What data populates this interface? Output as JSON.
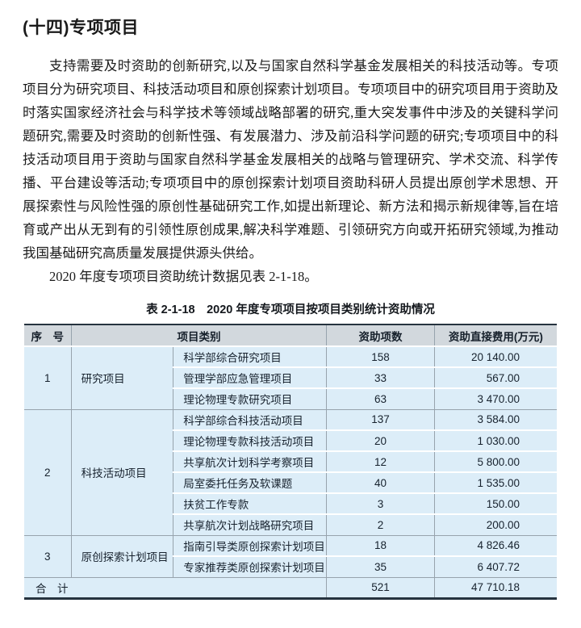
{
  "page": {
    "heading": "(十四)专项项目",
    "paragraph1": "支持需要及时资助的创新研究,以及与国家自然科学基金发展相关的科技活动等。专项项目分为研究项目、科技活动项目和原创探索计划项目。专项项目中的研究项目用于资助及时落实国家经济社会与科学技术等领域战略部署的研究,重大突发事件中涉及的关键科学问题研究,需要及时资助的创新性强、有发展潜力、涉及前沿科学问题的研究;专项项目中的科技活动项目用于资助与国家自然科学基金发展相关的战略与管理研究、学术交流、科学传播、平台建设等活动;专项项目中的原创探索计划项目资助科研人员提出原创学术思想、开展探索性与风险性强的原创性基础研究工作,如提出新理论、新方法和揭示新规律等,旨在培育或产出从无到有的引领性原创成果,解决科学难题、引领研究方向或开拓研究领域,为推动我国基础研究高质量发展提供源头供给。",
    "paragraph2": "2020 年度专项项目资助统计数据见表 2-1-18。",
    "table_caption": "表 2-1-18　2020 年度专项项目按项目类别统计资助情况"
  },
  "table": {
    "headers": {
      "no": "序　号",
      "category": "项目类别",
      "count": "资助项数",
      "amount": "资助直接费用(万元)"
    },
    "groups": [
      {
        "no": "1",
        "category": "研究项目",
        "rows": [
          {
            "name": "科学部综合研究项目",
            "count": "158",
            "amount": "20 140.00"
          },
          {
            "name": "管理学部应急管理项目",
            "count": "33",
            "amount": "567.00"
          },
          {
            "name": "理论物理专款研究项目",
            "count": "63",
            "amount": "3 470.00"
          }
        ]
      },
      {
        "no": "2",
        "category": "科技活动项目",
        "rows": [
          {
            "name": "科学部综合科技活动项目",
            "count": "137",
            "amount": "3 584.00"
          },
          {
            "name": "理论物理专款科技活动项目",
            "count": "20",
            "amount": "1 030.00"
          },
          {
            "name": "共享航次计划科学考察项目",
            "count": "12",
            "amount": "5 800.00"
          },
          {
            "name": "局室委托任务及软课题",
            "count": "40",
            "amount": "1 535.00"
          },
          {
            "name": "扶贫工作专款",
            "count": "3",
            "amount": "150.00"
          },
          {
            "name": "共享航次计划战略研究项目",
            "count": "2",
            "amount": "200.00"
          }
        ]
      },
      {
        "no": "3",
        "category": "原创探索计划项目",
        "rows": [
          {
            "name": "指南引导类原创探索计划项目",
            "count": "18",
            "amount": "4 826.46"
          },
          {
            "name": "专家推荐类原创探索计划项目",
            "count": "35",
            "amount": "6 407.72"
          }
        ]
      }
    ],
    "total": {
      "label": "合　计",
      "count": "521",
      "amount": "47 710.18"
    },
    "colors": {
      "header_bg": "#d2d8dd",
      "body_bg": "#dcedf8",
      "dark_rule": "#26333f",
      "gray_line": "#97a3ad"
    }
  }
}
